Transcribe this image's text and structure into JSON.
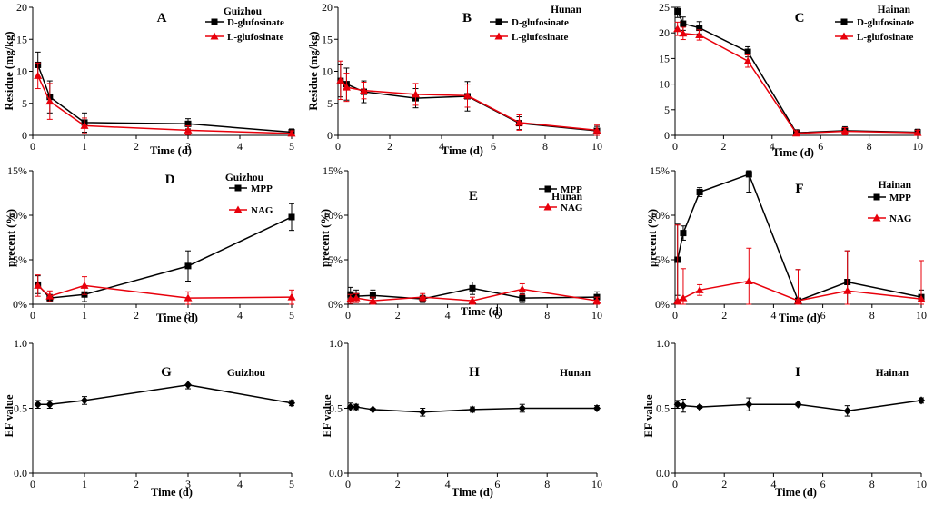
{
  "chart_data": [
    {
      "panel": "A",
      "site": "Guizhou",
      "type": "line",
      "xlabel": "Time (d)",
      "ylabel": "Residue (mg/kg)",
      "xlim": [
        0,
        5
      ],
      "xticks": [
        0,
        1,
        2,
        3,
        4,
        5
      ],
      "xtick_labels": [
        "0",
        "1",
        "2",
        "3",
        "4",
        "5"
      ],
      "ylim": [
        0,
        20
      ],
      "yticks": [
        0,
        5,
        10,
        15,
        20
      ],
      "ytick_labels": [
        "0",
        "5",
        "10",
        "15",
        "20"
      ],
      "series": [
        {
          "name": "D-glufosinate",
          "color": "#000000",
          "marker": "square",
          "x": [
            0.1,
            0.33,
            1,
            3,
            5
          ],
          "y": [
            11.0,
            6.0,
            2.0,
            1.8,
            0.5
          ],
          "err": [
            2.0,
            2.5,
            1.5,
            0.8,
            0.5
          ]
        },
        {
          "name": "L-glufosinate",
          "color": "#e8000b",
          "marker": "triangle",
          "x": [
            0.1,
            0.33,
            1,
            3,
            5
          ],
          "y": [
            9.3,
            5.3,
            1.5,
            0.8,
            0.3
          ],
          "err": [
            2.0,
            2.8,
            1.2,
            0.7,
            0.4
          ]
        }
      ]
    },
    {
      "panel": "B",
      "site": "Hunan",
      "type": "line",
      "xlabel": "Time (d)",
      "ylabel": "Residue (mg/kg)",
      "xlim": [
        0,
        10
      ],
      "xticks": [
        0,
        2,
        4,
        6,
        8,
        10
      ],
      "xtick_labels": [
        "0",
        "2",
        "4",
        "6",
        "8",
        "10"
      ],
      "ylim": [
        0,
        20
      ],
      "yticks": [
        0,
        5,
        10,
        15,
        20
      ],
      "ytick_labels": [
        "0",
        "5",
        "10",
        "15",
        "20"
      ],
      "series": [
        {
          "name": "D-glufosinate",
          "color": "#000000",
          "marker": "square",
          "x": [
            0.1,
            0.33,
            1,
            3,
            5,
            7,
            10
          ],
          "y": [
            8.5,
            8.0,
            6.8,
            5.8,
            6.1,
            1.9,
            0.7
          ],
          "err": [
            2.5,
            2.5,
            1.7,
            1.5,
            2.3,
            1.0,
            0.7
          ]
        },
        {
          "name": "L-glufosinate",
          "color": "#e8000b",
          "marker": "triangle",
          "x": [
            0.1,
            0.33,
            1,
            3,
            5,
            7,
            10
          ],
          "y": [
            8.6,
            7.5,
            7.0,
            6.4,
            6.2,
            2.0,
            0.8
          ],
          "err": [
            3.0,
            2.2,
            1.3,
            1.7,
            1.8,
            1.2,
            0.8
          ]
        }
      ]
    },
    {
      "panel": "C",
      "site": "Hainan",
      "type": "line",
      "xlabel": "Time (d)",
      "ylabel": "",
      "xlim": [
        0,
        10
      ],
      "xticks": [
        0,
        2,
        4,
        6,
        8,
        10
      ],
      "xtick_labels": [
        "0",
        "2",
        "4",
        "6",
        "8",
        "10"
      ],
      "ylim": [
        0,
        25
      ],
      "yticks": [
        0,
        5,
        10,
        15,
        20,
        25
      ],
      "ytick_labels": [
        "0",
        "5",
        "10",
        "15",
        "20",
        "25"
      ],
      "series": [
        {
          "name": "D-glufosinate",
          "color": "#000000",
          "marker": "square",
          "x": [
            0.1,
            0.33,
            1,
            3,
            5,
            7,
            10
          ],
          "y": [
            24.2,
            21.8,
            21.0,
            16.3,
            0.5,
            0.9,
            0.6
          ],
          "err": [
            1.2,
            1.3,
            1.2,
            1.0,
            0.6,
            0.8,
            0.6
          ]
        },
        {
          "name": "L-glufosinate",
          "color": "#e8000b",
          "marker": "triangle",
          "x": [
            0.1,
            0.33,
            1,
            3,
            5,
            7,
            10
          ],
          "y": [
            20.8,
            19.9,
            19.6,
            14.5,
            0.4,
            0.8,
            0.5
          ],
          "err": [
            1.3,
            1.2,
            1.0,
            1.2,
            0.5,
            0.7,
            0.5
          ]
        }
      ]
    },
    {
      "panel": "D",
      "site": "Guizhou",
      "type": "line",
      "xlabel": "Time (d)",
      "ylabel": "precent (%)",
      "xlim": [
        0,
        5
      ],
      "xticks": [
        0,
        1,
        2,
        3,
        4,
        5
      ],
      "xtick_labels": [
        "0",
        "1",
        "2",
        "3",
        "4",
        "5"
      ],
      "ylim": [
        0,
        15
      ],
      "yticks": [
        0,
        5,
        10,
        15
      ],
      "ytick_labels": [
        "0%",
        "5%",
        "10%",
        "15%"
      ],
      "series": [
        {
          "name": "MPP",
          "color": "#000000",
          "marker": "square",
          "x": [
            0.1,
            0.33,
            1,
            3,
            5
          ],
          "y": [
            2.2,
            0.7,
            1.1,
            4.3,
            9.8
          ],
          "err": [
            1.0,
            0.4,
            0.8,
            1.7,
            1.5
          ]
        },
        {
          "name": "NAG",
          "color": "#e8000b",
          "marker": "triangle",
          "x": [
            0.1,
            0.33,
            1,
            3,
            5
          ],
          "y": [
            2.1,
            0.9,
            2.1,
            0.7,
            0.8
          ],
          "err": [
            1.2,
            0.6,
            1.0,
            0.7,
            0.8
          ]
        }
      ]
    },
    {
      "panel": "E",
      "site": "Hunan",
      "type": "line",
      "xlabel": "Time (d)",
      "ylabel": "precent (%)",
      "xlim": [
        0,
        10
      ],
      "xticks": [
        0,
        2,
        4,
        6,
        8,
        10
      ],
      "xtick_labels": [
        "0",
        "2",
        "4",
        "6",
        "8",
        "10"
      ],
      "ylim": [
        0,
        15
      ],
      "yticks": [
        0,
        5,
        10,
        15
      ],
      "ytick_labels": [
        "0%",
        "5%",
        "10%",
        "15%"
      ],
      "series": [
        {
          "name": "MPP",
          "color": "#000000",
          "marker": "square",
          "x": [
            0.1,
            0.33,
            1,
            3,
            5,
            7,
            10
          ],
          "y": [
            1.1,
            0.9,
            1.0,
            0.6,
            1.8,
            0.7,
            0.8
          ],
          "err": [
            0.8,
            0.7,
            0.6,
            0.4,
            0.7,
            0.5,
            0.6
          ]
        },
        {
          "name": "NAG",
          "color": "#e8000b",
          "marker": "triangle",
          "x": [
            0.1,
            0.33,
            1,
            3,
            5,
            7,
            10
          ],
          "y": [
            0.6,
            0.7,
            0.4,
            0.8,
            0.4,
            1.7,
            0.4
          ],
          "err": [
            0.5,
            0.5,
            0.4,
            0.4,
            0.4,
            0.6,
            0.4
          ]
        }
      ]
    },
    {
      "panel": "F",
      "site": "Hainan",
      "type": "line",
      "xlabel": "Time (d)",
      "ylabel": "precent (%)",
      "xlim": [
        0,
        10
      ],
      "xticks": [
        0,
        2,
        4,
        6,
        8,
        10
      ],
      "xtick_labels": [
        "0",
        "2",
        "4",
        "6",
        "8",
        "10"
      ],
      "ylim": [
        0,
        15
      ],
      "yticks": [
        0,
        5,
        10,
        15
      ],
      "ytick_labels": [
        "0%",
        "5%",
        "10%",
        "15%"
      ],
      "series": [
        {
          "name": "MPP",
          "color": "#000000",
          "marker": "square",
          "x": [
            0.1,
            0.33,
            1,
            3,
            5,
            7,
            10
          ],
          "y": [
            5.0,
            8.0,
            12.6,
            14.6,
            0.4,
            2.5,
            0.8
          ],
          "err": [
            4.0,
            0.8,
            0.5,
            2.0,
            3.5,
            3.5,
            0.8
          ]
        },
        {
          "name": "NAG",
          "color": "#e8000b",
          "marker": "triangle",
          "x": [
            0.1,
            0.33,
            1,
            3,
            5,
            7,
            10
          ],
          "y": [
            0.4,
            0.7,
            1.6,
            2.6,
            0.4,
            1.5,
            0.6
          ],
          "err": [
            8.5,
            3.3,
            0.6,
            3.7,
            3.5,
            4.5,
            4.3
          ]
        }
      ]
    },
    {
      "panel": "G",
      "site": "Guizhou",
      "type": "line",
      "xlabel": "Time (d)",
      "ylabel": "EF value",
      "xlim": [
        0,
        5
      ],
      "xticks": [
        0,
        1,
        2,
        3,
        4,
        5
      ],
      "xtick_labels": [
        "0",
        "1",
        "2",
        "3",
        "4",
        "5"
      ],
      "ylim": [
        0,
        1
      ],
      "yticks": [
        0,
        0.5,
        1
      ],
      "ytick_labels": [
        "0.0",
        "0.5",
        "1.0"
      ],
      "series": [
        {
          "name": "EF",
          "color": "#000000",
          "marker": "diamond",
          "x": [
            0.1,
            0.33,
            1,
            3,
            5
          ],
          "y": [
            0.53,
            0.53,
            0.56,
            0.68,
            0.54
          ],
          "err": [
            0.03,
            0.03,
            0.03,
            0.03,
            0.02
          ]
        }
      ]
    },
    {
      "panel": "H",
      "site": "Hunan",
      "type": "line",
      "xlabel": "Time (d)",
      "ylabel": "EF value",
      "xlim": [
        0,
        10
      ],
      "xticks": [
        0,
        2,
        4,
        6,
        8,
        10
      ],
      "xtick_labels": [
        "0",
        "2",
        "4",
        "6",
        "8",
        "10"
      ],
      "ylim": [
        0,
        1
      ],
      "yticks": [
        0,
        0.5,
        1
      ],
      "ytick_labels": [
        "0.0",
        "0.5",
        "1.0"
      ],
      "series": [
        {
          "name": "EF",
          "color": "#000000",
          "marker": "diamond",
          "x": [
            0.1,
            0.33,
            1,
            3,
            5,
            7,
            10
          ],
          "y": [
            0.51,
            0.51,
            0.49,
            0.47,
            0.49,
            0.5,
            0.5
          ],
          "err": [
            0.03,
            0.02,
            0.01,
            0.03,
            0.02,
            0.03,
            0.02
          ]
        }
      ]
    },
    {
      "panel": "I",
      "site": "Hainan",
      "type": "line",
      "xlabel": "Time (d)",
      "ylabel": "EF value",
      "xlim": [
        0,
        10
      ],
      "xticks": [
        0,
        2,
        4,
        6,
        8,
        10
      ],
      "xtick_labels": [
        "0",
        "2",
        "4",
        "6",
        "8",
        "10"
      ],
      "ylim": [
        0,
        1
      ],
      "yticks": [
        0,
        0.5,
        1
      ],
      "ytick_labels": [
        "0.0",
        "0.5",
        "1.0"
      ],
      "series": [
        {
          "name": "EF",
          "color": "#000000",
          "marker": "diamond",
          "x": [
            0.1,
            0.33,
            1,
            3,
            5,
            7,
            10
          ],
          "y": [
            0.53,
            0.52,
            0.51,
            0.53,
            0.53,
            0.48,
            0.56
          ],
          "err": [
            0.03,
            0.05,
            0.01,
            0.05,
            0.01,
            0.04,
            0.02
          ]
        }
      ]
    }
  ]
}
